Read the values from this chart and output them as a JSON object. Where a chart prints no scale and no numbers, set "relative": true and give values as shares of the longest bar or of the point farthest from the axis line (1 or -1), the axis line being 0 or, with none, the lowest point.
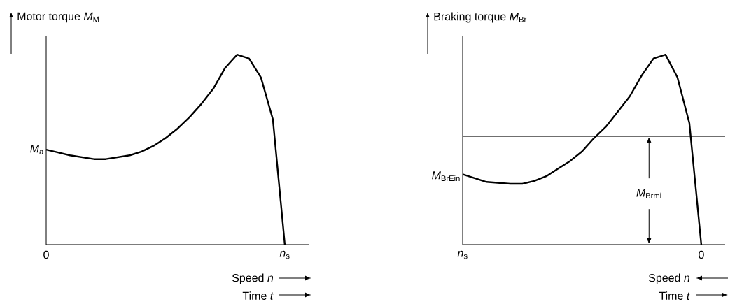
{
  "chart_data": [
    {
      "type": "line",
      "relative": true,
      "ylabel": "Motor torque *M*$_{M}$",
      "xlabel": "Speed *n*",
      "color": "#000000",
      "categories": [
        "0",
        null,
        null,
        null,
        null,
        null,
        null,
        null,
        null,
        null,
        null,
        null,
        null,
        null,
        null,
        null,
        null,
        null,
        null,
        null,
        "*n*$_{s}$",
        null,
        null
      ],
      "values": [
        0.5,
        0.485,
        0.47,
        0.46,
        0.45,
        0.45,
        0.46,
        0.47,
        0.49,
        0.52,
        0.56,
        0.61,
        0.67,
        0.74,
        0.82,
        0.93,
        1.0,
        0.98,
        0.88,
        0.66,
        0,
        null,
        null
      ],
      "annotations": [
        {
          "text": "*M*$_{a}$",
          "x": "0",
          "y": 0.5
        },
        "Time *t*"
      ]
    },
    {
      "type": "line",
      "relative": true,
      "ylabel": "Braking torque *M*$_{Br}$",
      "xlabel": "Speed *n*",
      "color": "#000000",
      "categories": [
        "*n*$_{s}$",
        null,
        null,
        null,
        null,
        null,
        null,
        null,
        null,
        null,
        null,
        null,
        null,
        null,
        null,
        null,
        null,
        null,
        null,
        null,
        "0",
        null,
        null
      ],
      "values": [
        0.37,
        0.35,
        0.33,
        0.325,
        0.32,
        0.32,
        0.335,
        0.36,
        0.4,
        0.44,
        0.49,
        0.56,
        0.62,
        0.7,
        0.78,
        0.89,
        0.98,
        1.0,
        0.88,
        0.64,
        0,
        null,
        null
      ],
      "ref_lines": [
        {
          "axis": "y",
          "value": 0.57
        }
      ],
      "annotations": [
        {
          "text": "*M*$_{BrEin}$",
          "x": "*n*$_{s}$",
          "y": 0.36
        },
        "*M*$_{Brmi}$",
        "Time *t*"
      ]
    }
  ]
}
